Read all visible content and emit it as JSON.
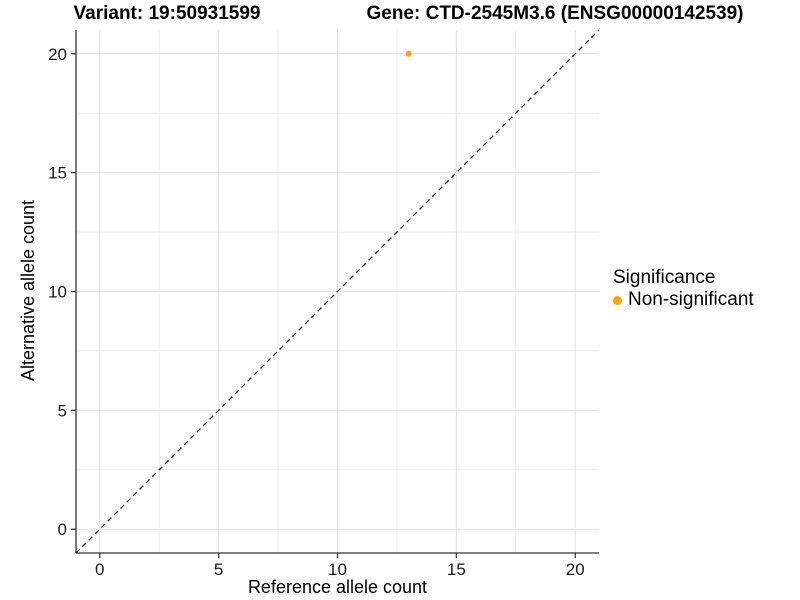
{
  "chart_data": {
    "type": "scatter",
    "title_left": "Variant: 19:50931599",
    "title_right": "Gene: CTD-2545M3.6 (ENSG00000142539)",
    "xlabel": "Reference allele count",
    "ylabel": "Alternative allele count",
    "x_range": [
      -1,
      21
    ],
    "y_range": [
      -1,
      21
    ],
    "x_ticks": [
      0,
      5,
      10,
      15,
      20
    ],
    "y_ticks": [
      0,
      5,
      10,
      15,
      20
    ],
    "x_minor_ticks": [
      2.5,
      7.5,
      12.5,
      17.5
    ],
    "y_minor_ticks": [
      2.5,
      7.5,
      12.5,
      17.5
    ],
    "grid": "major+minor",
    "series": [
      {
        "name": "Non-significant",
        "color": "#FFA500",
        "points": [
          {
            "x": 13,
            "y": 20
          }
        ]
      }
    ],
    "identity_line": {
      "style": "dashed",
      "from": [
        -1,
        -1
      ],
      "to": [
        21,
        21
      ],
      "color": "#000000"
    },
    "legend": {
      "title": "Significance",
      "position": "right",
      "items": [
        {
          "label": "Non-significant",
          "color": "#FFA500",
          "marker": "circle"
        }
      ]
    },
    "colors": {
      "background": "#FFFFFF",
      "grid_major": "#E2E2E2",
      "grid_minor": "#EDEDED",
      "axis_line": "#333333",
      "tick_mark": "#333333",
      "tick_text": "#1A1A1A"
    }
  }
}
